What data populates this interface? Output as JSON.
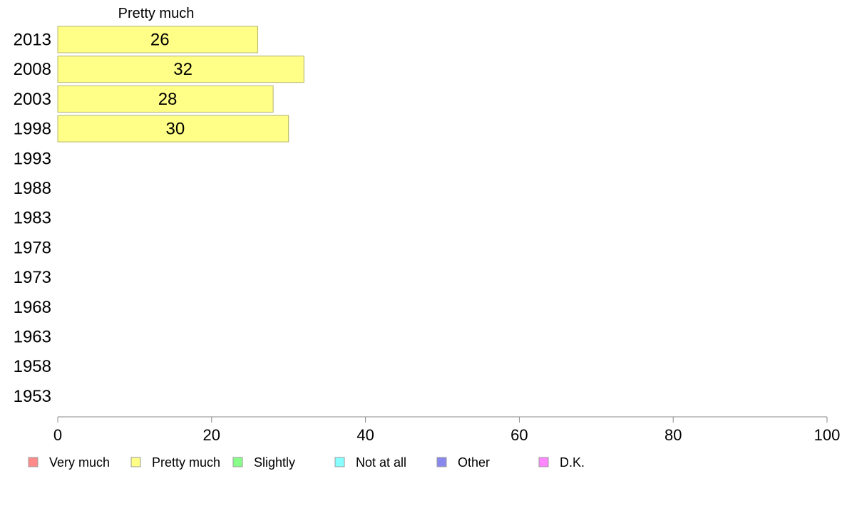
{
  "chart_data": {
    "type": "bar",
    "orientation": "horizontal",
    "series_header": "Pretty much",
    "categories": [
      "2013",
      "2008",
      "2003",
      "1998",
      "1993",
      "1988",
      "1983",
      "1978",
      "1973",
      "1968",
      "1963",
      "1958",
      "1953"
    ],
    "series": [
      {
        "name": "Pretty much",
        "color": "#ffff88",
        "values": [
          26,
          32,
          28,
          30,
          null,
          null,
          null,
          null,
          null,
          null,
          null,
          null,
          null
        ]
      }
    ],
    "xlim": [
      0,
      100
    ],
    "xticks": [
      0,
      20,
      40,
      60,
      80,
      100
    ],
    "grid": false,
    "legend_position": "bottom",
    "legend": [
      {
        "label": "Very much",
        "color": "#ff8a8a"
      },
      {
        "label": "Pretty much",
        "color": "#ffff88"
      },
      {
        "label": "Slightly",
        "color": "#88ff88"
      },
      {
        "label": "Not at all",
        "color": "#88ffff"
      },
      {
        "label": "Other",
        "color": "#8888ee"
      },
      {
        "label": "D.K.",
        "color": "#ff88ff"
      }
    ]
  }
}
